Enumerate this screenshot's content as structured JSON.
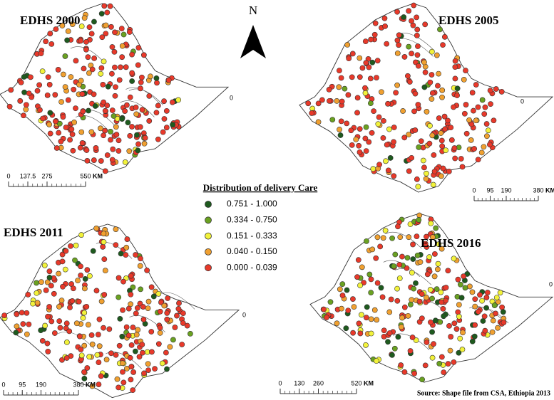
{
  "north": "N",
  "source": "Source: Shape file from CSA, Ethiopia 2013",
  "legend": {
    "title": "Distribution of delivery Care",
    "items": [
      {
        "label": "0.751 - 1.000",
        "color": "#1e5a1e"
      },
      {
        "label": "0.334 - 0.750",
        "color": "#6aa121"
      },
      {
        "label": "0.151 - 0.333",
        "color": "#f2f23a"
      },
      {
        "label": "0.040 - 0.150",
        "color": "#f0a030"
      },
      {
        "label": "0.000 - 0.039",
        "color": "#e8392a"
      }
    ]
  },
  "maps": [
    {
      "title": "EDHS 2000",
      "zero_label": "0",
      "scale_ticks": [
        0,
        137.5,
        275,
        550
      ],
      "scale_unit": "KM"
    },
    {
      "title": "EDHS 2005",
      "zero_label": "0",
      "scale_ticks": [
        0,
        95,
        190,
        380
      ],
      "scale_unit": "KM"
    },
    {
      "title": "EDHS 2011",
      "zero_label": "0",
      "scale_ticks": [
        0,
        95,
        190,
        380
      ],
      "scale_unit": "KM"
    },
    {
      "title": "EDHS 2016",
      "zero_label": "0",
      "scale_ticks": [
        0,
        130,
        260,
        520
      ],
      "scale_unit": "KM"
    }
  ]
}
